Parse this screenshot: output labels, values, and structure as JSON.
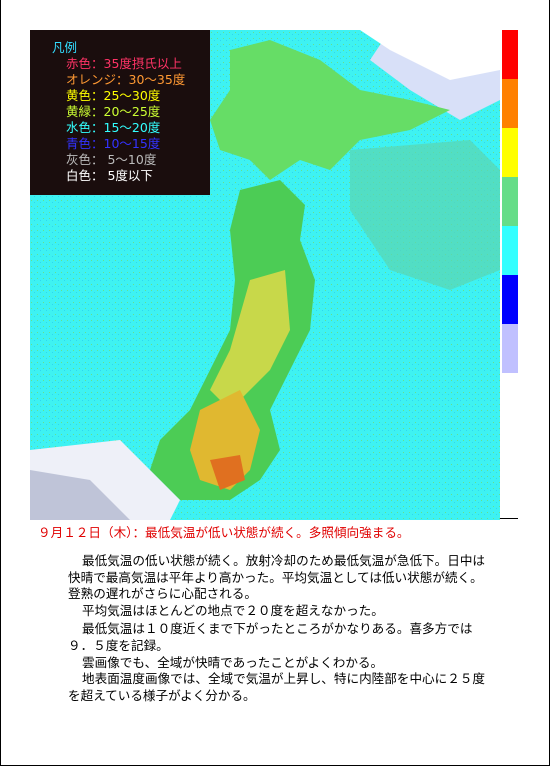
{
  "legend": {
    "title": "凡例",
    "items": [
      "赤色：35度摂氏以上",
      "オレンジ：30～35度",
      "黄色：25～30度",
      "黄緑：20～25度",
      "水色：15～20度",
      "青色：10～15度",
      "灰色： 5～10度",
      "白色： 5度以下"
    ]
  },
  "headline": "９月１２日（木）：最低気温が低い状態が続く。多照傾向強まる。",
  "paragraphs": [
    [
      "最低気温の低い状態が続く。放射冷却のため最低気温が急低下。日中は",
      "快晴で最高気温は平年より高かった。平均気温としては低い状態が続く。",
      "登熟の遅れがさらに心配される。"
    ],
    [
      "平均気温はほとんどの地点で２０度を超えなかった。"
    ],
    [
      "最低気温は１０度近くまで下がったところがかなりある。喜多方では",
      "９．５度を記録。"
    ],
    [
      "雲画像でも、全域が快晴であったことがよくわかる。"
    ],
    [
      "地表面温度画像では、全域で気温が上昇し、特に内陸部を中心に２５度",
      "を超えている様子がよく分かる。"
    ]
  ]
}
